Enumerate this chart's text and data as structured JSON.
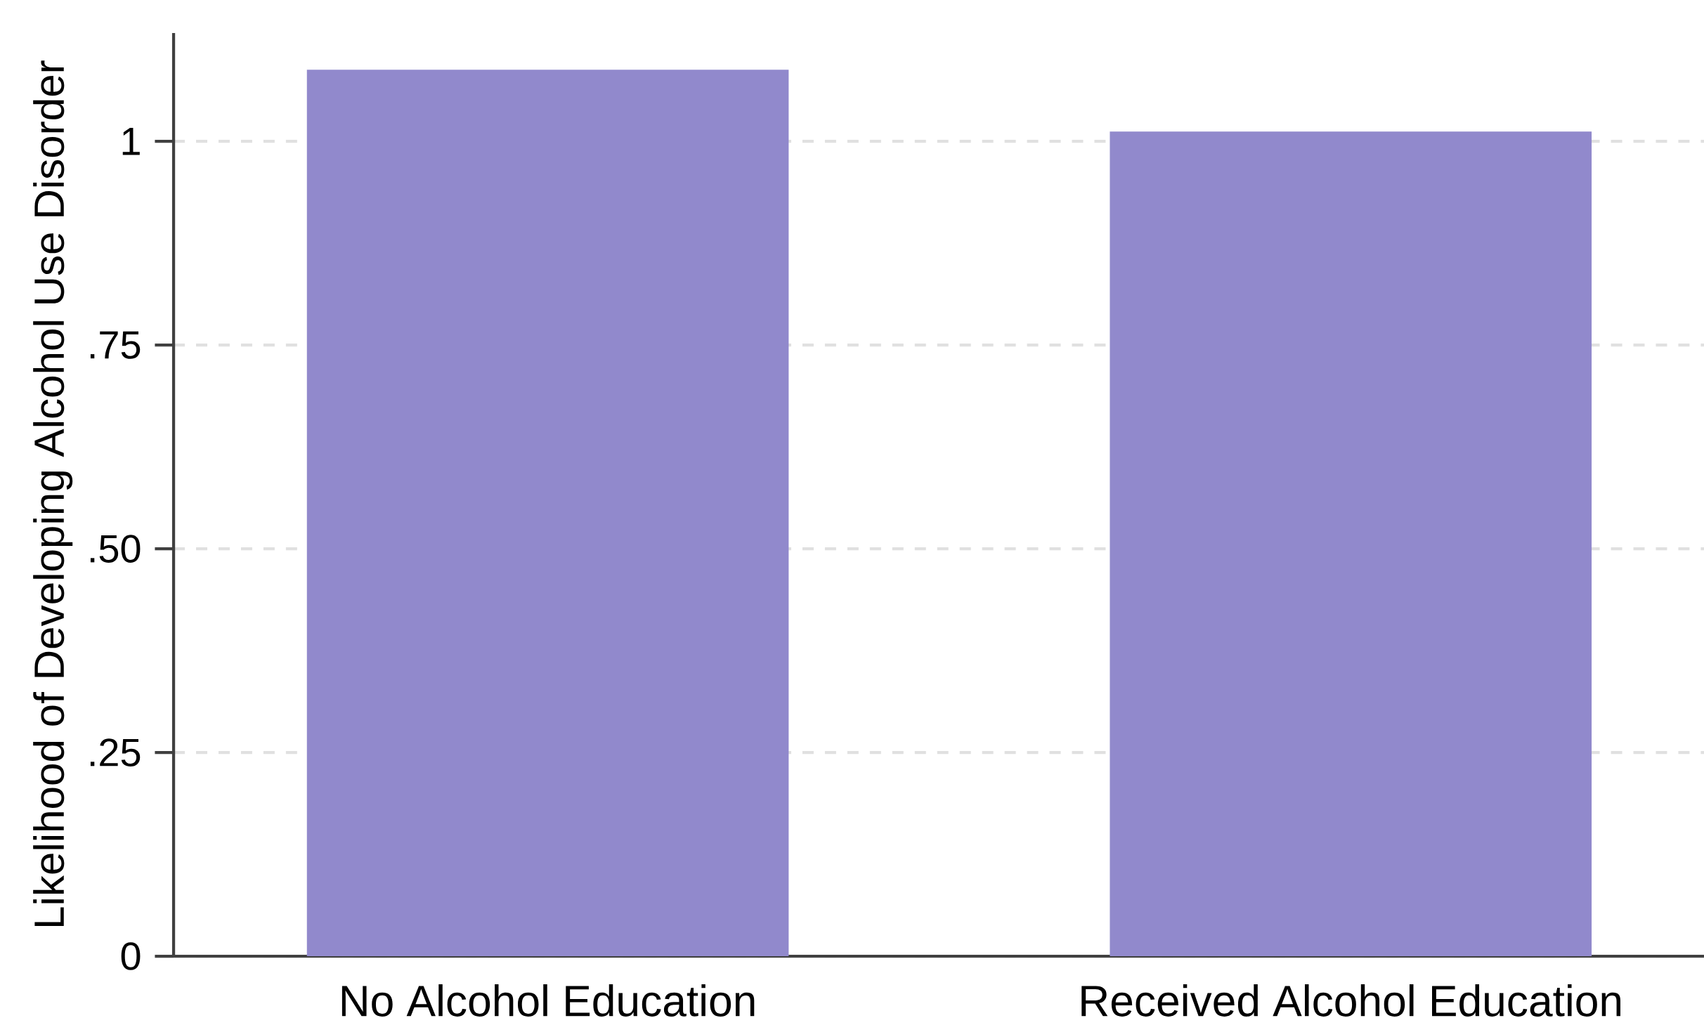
{
  "chart_data": {
    "type": "bar",
    "ylabel": "Likelihood of Developing Alcohol Use Disorder",
    "categories": [
      "No Alcohol Education",
      "Received Alcohol Education"
    ],
    "values": [
      1.088,
      1.012
    ],
    "color": "#9189cc",
    "ylim": [
      0,
      1.133
    ],
    "yticks": [
      0,
      {
        "value": 0.25,
        "label": ".25"
      },
      {
        "value": 0.5,
        "label": ".50"
      },
      {
        "value": 0.75,
        "label": ".75"
      },
      1
    ],
    "grid": "y"
  }
}
